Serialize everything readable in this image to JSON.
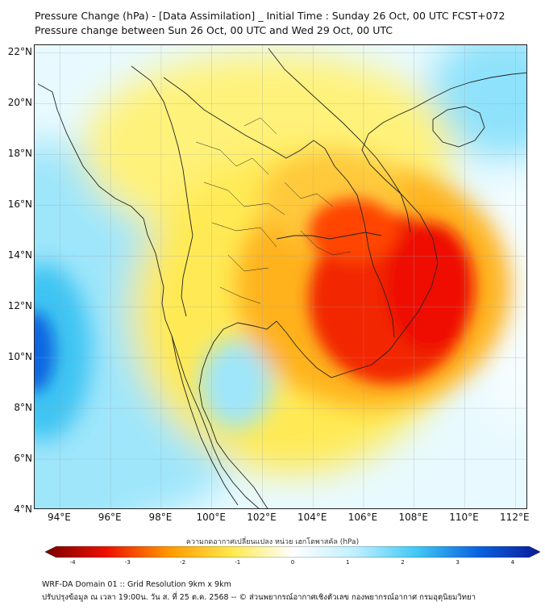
{
  "title": {
    "line1": "Pressure Change (hPa) - [Data Assimilation] _ Initial Time : Sunday 26 Oct, 00 UTC FCST+072",
    "line2": "Pressure change between Sun 26 Oct, 00 UTC and Wed 29 Oct, 00 UTC"
  },
  "map": {
    "lat_labels": [
      "22°N",
      "20°N",
      "18°N",
      "16°N",
      "14°N",
      "12°N",
      "10°N",
      "8°N",
      "6°N",
      "4°N"
    ],
    "lon_labels": [
      "94°E",
      "96°E",
      "98°E",
      "100°E",
      "102°E",
      "104°E",
      "106°E",
      "108°E",
      "110°E",
      "112°E"
    ],
    "lon_range": [
      93,
      112.5
    ],
    "lat_range": [
      4,
      22.3
    ],
    "field_colors": {
      "strong_fall": "#ee1100",
      "moderate_fall": "#ff9900",
      "weak_fall": "#ffe94a",
      "near_zero": "#ffffff",
      "weak_rise": "#bff0ff",
      "moderate_rise": "#41c8f5",
      "strong_rise": "#0a63e0"
    }
  },
  "colorbar": {
    "label": "ความกดอากาศเปลี่ยนแปลง หน่วย เฮกโตพาสคัล (hPa)",
    "tick_labels": [
      "-4",
      "-3",
      "-2",
      "-1",
      "0",
      "1",
      "2",
      "3",
      "4"
    ],
    "range": [
      -4.5,
      4.5
    ],
    "colors": [
      "#7a0000",
      "#ee1100",
      "#ff9900",
      "#ffe94a",
      "#ffffff",
      "#bff0ff",
      "#41c8f5",
      "#0a63e0",
      "#0a1a9a"
    ]
  },
  "footer": {
    "line1": "WRF-DA Domain 01 :: Grid Resolution 9km x 9km",
    "line2": "ปรับปรุงข้อมูล ณ เวลา 19:00น. วัน ส. ที่ 25 ต.ค. 2568 -- © ส่วนพยากรณ์อากาศเชิงตัวเลข กองพยากรณ์อากาศ กรมอุตุนิยมวิทยา"
  }
}
